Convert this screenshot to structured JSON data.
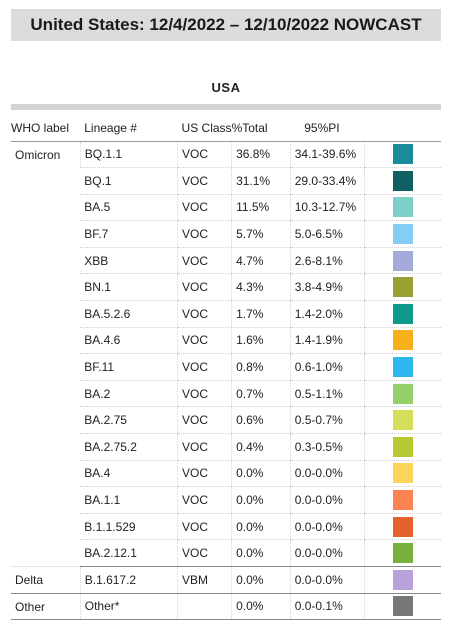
{
  "header": {
    "title": "United States: 12/4/2022 – 12/10/2022 NOWCAST"
  },
  "region": "USA",
  "columns": {
    "who": "WHO label",
    "lineage": "Lineage #",
    "us_class": "US Class",
    "total": "%Total",
    "pi": "95%PI"
  },
  "groups": [
    {
      "who": "Omicron",
      "rows": [
        {
          "lineage": "BQ.1.1",
          "us_class": "VOC",
          "total": "36.8%",
          "pi": "34.1-39.6%",
          "color": "#1a8c99"
        },
        {
          "lineage": "BQ.1",
          "us_class": "VOC",
          "total": "31.1%",
          "pi": "29.0-33.4%",
          "color": "#0f5f63"
        },
        {
          "lineage": "BA.5",
          "us_class": "VOC",
          "total": "11.5%",
          "pi": "10.3-12.7%",
          "color": "#7dd0c8"
        },
        {
          "lineage": "BF.7",
          "us_class": "VOC",
          "total": "5.7%",
          "pi": "5.0-6.5%",
          "color": "#84cdf5"
        },
        {
          "lineage": "XBB",
          "us_class": "VOC",
          "total": "4.7%",
          "pi": "2.6-8.1%",
          "color": "#a3a9d8"
        },
        {
          "lineage": "BN.1",
          "us_class": "VOC",
          "total": "4.3%",
          "pi": "3.8-4.9%",
          "color": "#9aa032"
        },
        {
          "lineage": "BA.5.2.6",
          "us_class": "VOC",
          "total": "1.7%",
          "pi": "1.4-2.0%",
          "color": "#0d9a8a"
        },
        {
          "lineage": "BA.4.6",
          "us_class": "VOC",
          "total": "1.6%",
          "pi": "1.4-1.9%",
          "color": "#f7b01a"
        },
        {
          "lineage": "BF.11",
          "us_class": "VOC",
          "total": "0.8%",
          "pi": "0.6-1.0%",
          "color": "#2eb6ee"
        },
        {
          "lineage": "BA.2",
          "us_class": "VOC",
          "total": "0.7%",
          "pi": "0.5-1.1%",
          "color": "#95cf6a"
        },
        {
          "lineage": "BA.2.75",
          "us_class": "VOC",
          "total": "0.6%",
          "pi": "0.5-0.7%",
          "color": "#d4de5a"
        },
        {
          "lineage": "BA.2.75.2",
          "us_class": "VOC",
          "total": "0.4%",
          "pi": "0.3-0.5%",
          "color": "#b8c832"
        },
        {
          "lineage": "BA.4",
          "us_class": "VOC",
          "total": "0.0%",
          "pi": "0.0-0.0%",
          "color": "#fbd45a"
        },
        {
          "lineage": "BA.1.1",
          "us_class": "VOC",
          "total": "0.0%",
          "pi": "0.0-0.0%",
          "color": "#fb8452"
        },
        {
          "lineage": "B.1.1.529",
          "us_class": "VOC",
          "total": "0.0%",
          "pi": "0.0-0.0%",
          "color": "#e5622a"
        },
        {
          "lineage": "BA.2.12.1",
          "us_class": "VOC",
          "total": "0.0%",
          "pi": "0.0-0.0%",
          "color": "#78b23e"
        }
      ]
    },
    {
      "who": "Delta",
      "rows": [
        {
          "lineage": "B.1.617.2",
          "us_class": "VBM",
          "total": "0.0%",
          "pi": "0.0-0.0%",
          "color": "#b9a2dc"
        }
      ]
    },
    {
      "who": "Other",
      "rows": [
        {
          "lineage": "Other*",
          "us_class": "",
          "total": "0.0%",
          "pi": "0.0-0.1%",
          "color": "#787878"
        }
      ]
    }
  ]
}
